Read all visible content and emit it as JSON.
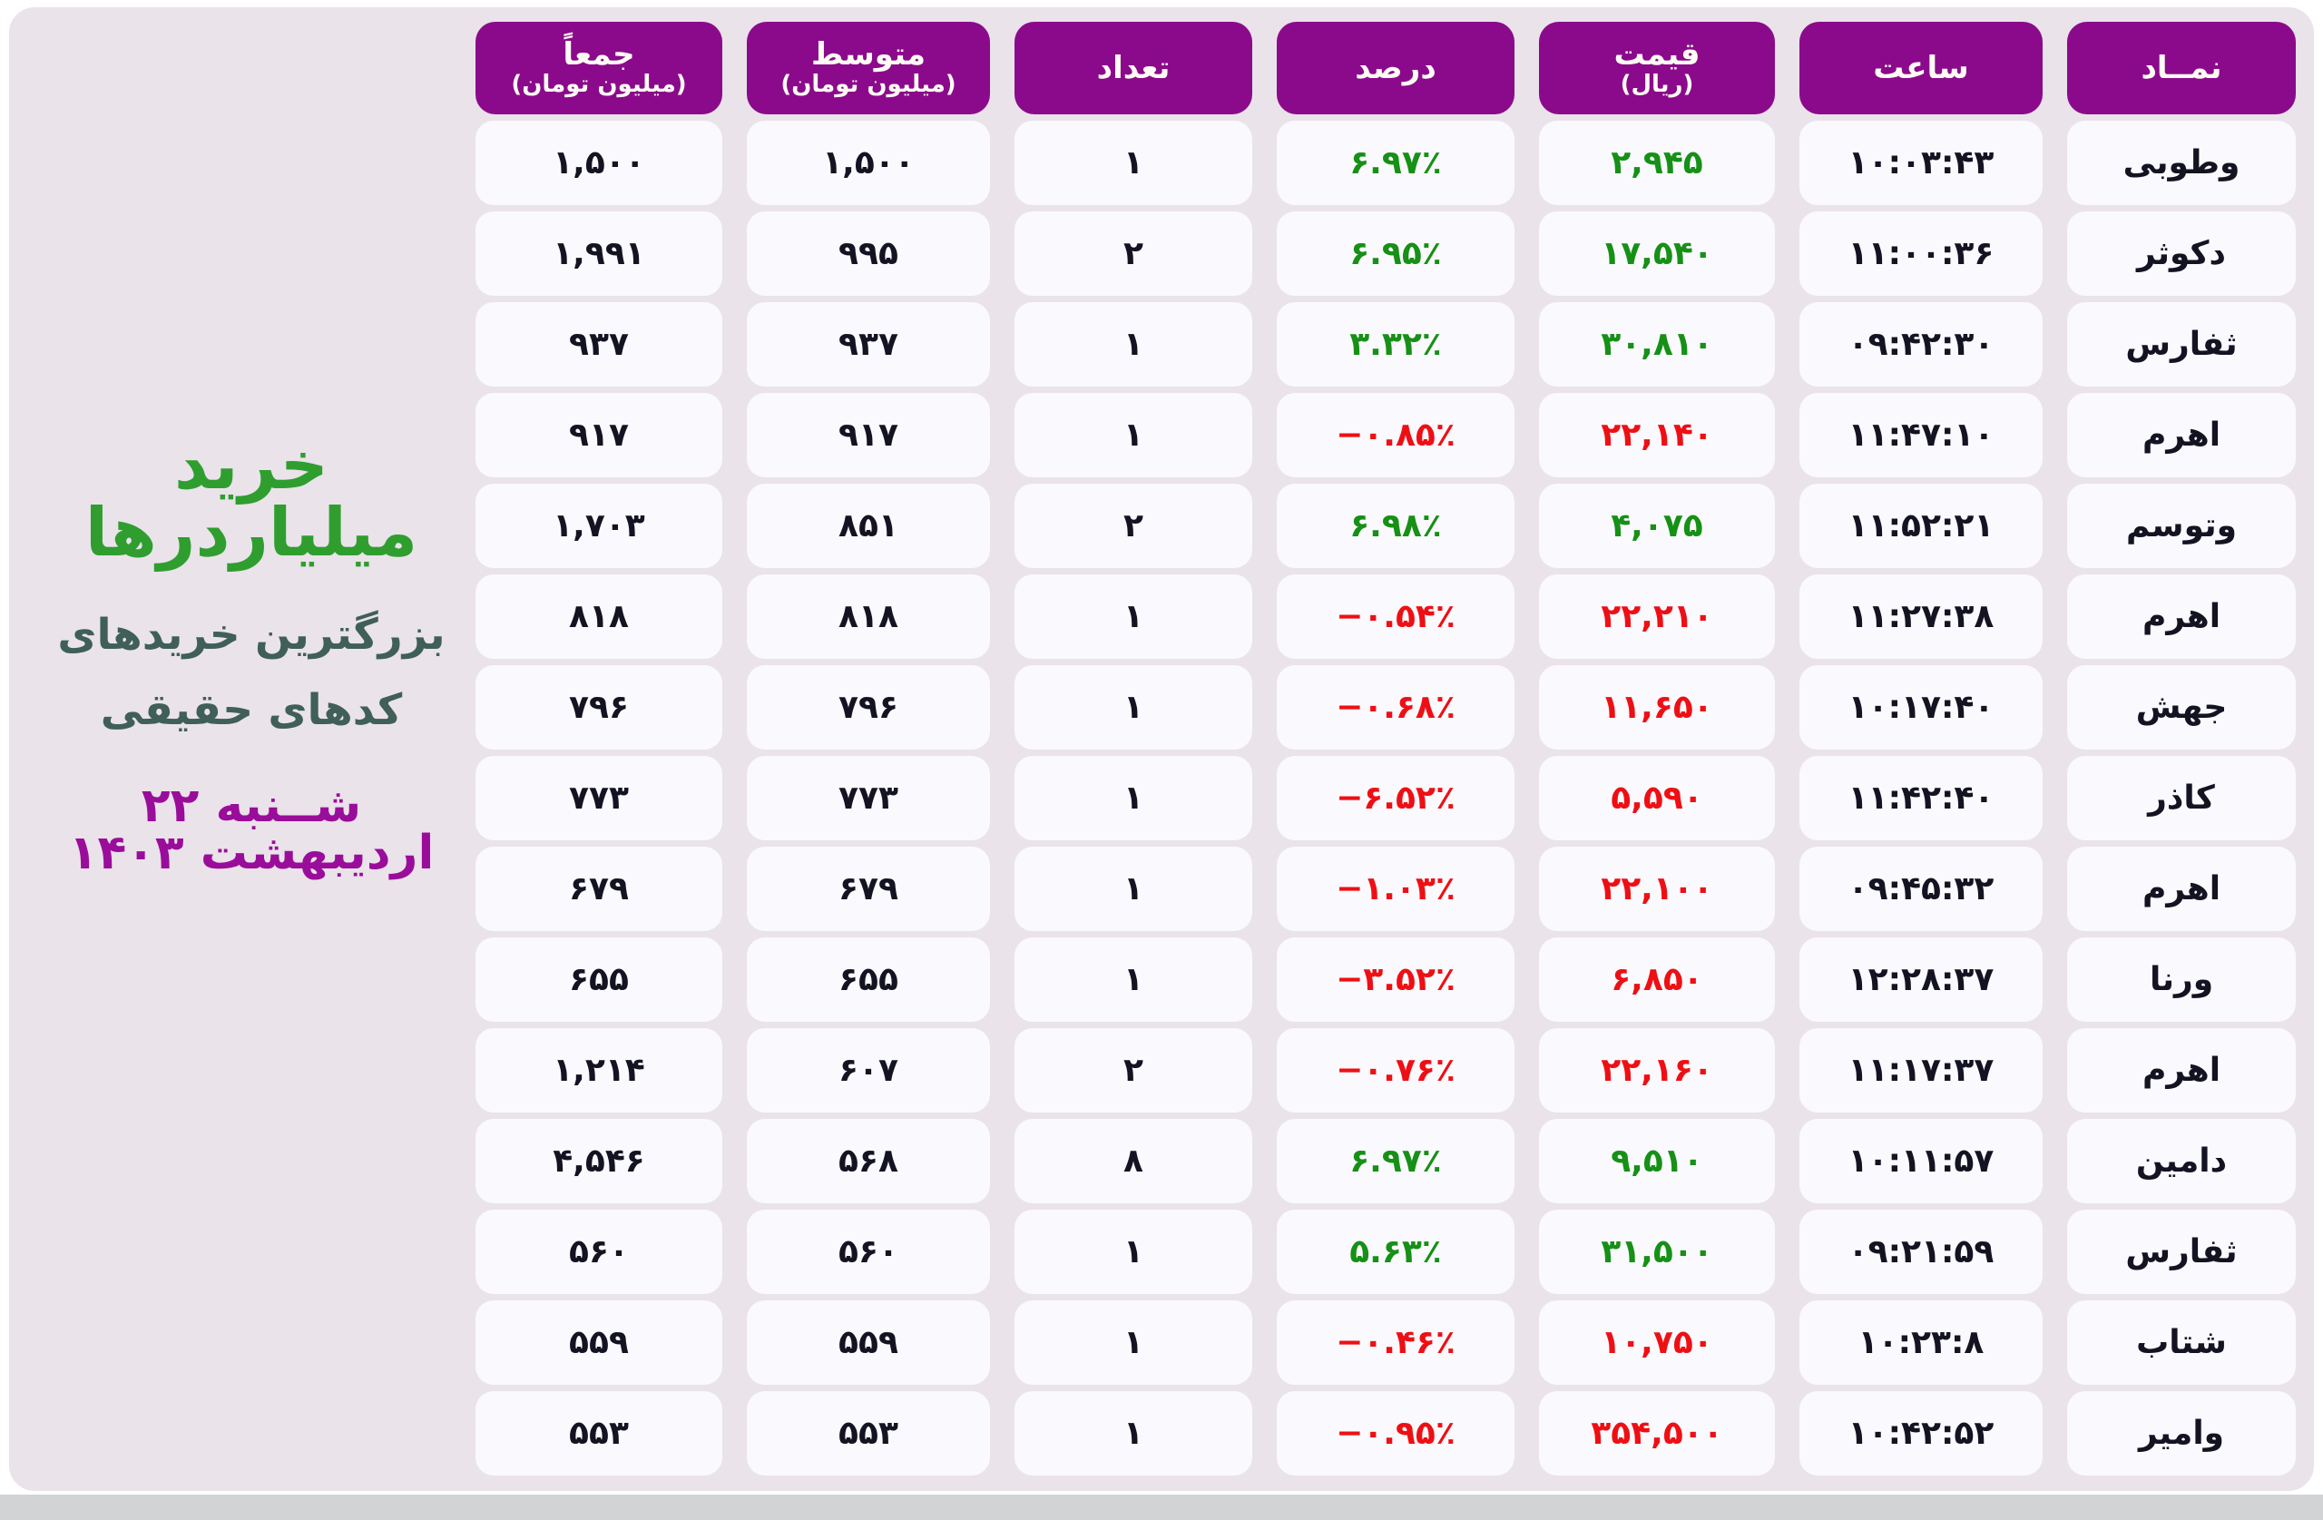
{
  "title": {
    "main": "خرید میلیاردرها",
    "subtitle_line1": "بزرگترین خریدهای",
    "subtitle_line2": "کدهای حقیقی",
    "date": "شــنبه ۲۲ اردیبهشت ۱۴۰۳"
  },
  "colors": {
    "header_purple": "#8b0a8b",
    "positive_green": "#169016",
    "negative_red": "#ee0f14",
    "title_green": "#2f9e2f",
    "subtitle_teal": "#3f5f58",
    "date_purple": "#9a0d9a",
    "panel_background": "#eae3ea",
    "cell_background": "#faf9fd"
  },
  "table": {
    "headers": [
      {
        "label": "نمــاد",
        "sub": ""
      },
      {
        "label": "ساعت",
        "sub": ""
      },
      {
        "label": "قیمت",
        "sub": "(ریال)"
      },
      {
        "label": "درصد",
        "sub": ""
      },
      {
        "label": "تعداد",
        "sub": ""
      },
      {
        "label": "متوسط",
        "sub": "(میلیون تومان)"
      },
      {
        "label": "جمعاً",
        "sub": "(میلیون تومان)"
      }
    ],
    "rows": [
      {
        "symbol": "وطوبی",
        "time": "۱۰:۰۳:۴۳",
        "price": "۲,۹۴۵",
        "percent": "۶.۹۷٪",
        "count": "۱",
        "avg": "۱,۵۰۰",
        "total": "۱,۵۰۰",
        "trend": "up"
      },
      {
        "symbol": "دکوثر",
        "time": "۱۱:۰۰:۳۶",
        "price": "۱۷,۵۴۰",
        "percent": "۶.۹۵٪",
        "count": "۲",
        "avg": "۹۹۵",
        "total": "۱,۹۹۱",
        "trend": "up"
      },
      {
        "symbol": "ثفارس",
        "time": "۰۹:۴۲:۳۰",
        "price": "۳۰,۸۱۰",
        "percent": "۳.۳۲٪",
        "count": "۱",
        "avg": "۹۳۷",
        "total": "۹۳۷",
        "trend": "up"
      },
      {
        "symbol": "اهرم",
        "time": "۱۱:۴۷:۱۰",
        "price": "۲۲,۱۴۰",
        "percent": "−۰.۸۵٪",
        "count": "۱",
        "avg": "۹۱۷",
        "total": "۹۱۷",
        "trend": "down"
      },
      {
        "symbol": "وتوسم",
        "time": "۱۱:۵۲:۲۱",
        "price": "۴,۰۷۵",
        "percent": "۶.۹۸٪",
        "count": "۲",
        "avg": "۸۵۱",
        "total": "۱,۷۰۳",
        "trend": "up"
      },
      {
        "symbol": "اهرم",
        "time": "۱۱:۲۷:۳۸",
        "price": "۲۲,۲۱۰",
        "percent": "−۰.۵۴٪",
        "count": "۱",
        "avg": "۸۱۸",
        "total": "۸۱۸",
        "trend": "down"
      },
      {
        "symbol": "جهش",
        "time": "۱۰:۱۷:۴۰",
        "price": "۱۱,۶۵۰",
        "percent": "−۰.۶۸٪",
        "count": "۱",
        "avg": "۷۹۶",
        "total": "۷۹۶",
        "trend": "down"
      },
      {
        "symbol": "کاذر",
        "time": "۱۱:۴۲:۴۰",
        "price": "۵,۵۹۰",
        "percent": "−۶.۵۲٪",
        "count": "۱",
        "avg": "۷۷۳",
        "total": "۷۷۳",
        "trend": "down"
      },
      {
        "symbol": "اهرم",
        "time": "۰۹:۴۵:۳۲",
        "price": "۲۲,۱۰۰",
        "percent": "−۱.۰۳٪",
        "count": "۱",
        "avg": "۶۷۹",
        "total": "۶۷۹",
        "trend": "down"
      },
      {
        "symbol": "ورنا",
        "time": "۱۲:۲۸:۳۷",
        "price": "۶,۸۵۰",
        "percent": "−۳.۵۲٪",
        "count": "۱",
        "avg": "۶۵۵",
        "total": "۶۵۵",
        "trend": "down"
      },
      {
        "symbol": "اهرم",
        "time": "۱۱:۱۷:۳۷",
        "price": "۲۲,۱۶۰",
        "percent": "−۰.۷۶٪",
        "count": "۲",
        "avg": "۶۰۷",
        "total": "۱,۲۱۴",
        "trend": "down"
      },
      {
        "symbol": "دامین",
        "time": "۱۰:۱۱:۵۷",
        "price": "۹,۵۱۰",
        "percent": "۶.۹۷٪",
        "count": "۸",
        "avg": "۵۶۸",
        "total": "۴,۵۴۶",
        "trend": "up"
      },
      {
        "symbol": "ثفارس",
        "time": "۰۹:۲۱:۵۹",
        "price": "۳۱,۵۰۰",
        "percent": "۵.۶۳٪",
        "count": "۱",
        "avg": "۵۶۰",
        "total": "۵۶۰",
        "trend": "up"
      },
      {
        "symbol": "شتاب",
        "time": "۱۰:۲۳:۸",
        "price": "۱۰,۷۵۰",
        "percent": "−۰.۴۶٪",
        "count": "۱",
        "avg": "۵۵۹",
        "total": "۵۵۹",
        "trend": "down"
      },
      {
        "symbol": "وامیر",
        "time": "۱۰:۴۲:۵۲",
        "price": "۳۵۴,۵۰۰",
        "percent": "−۰.۹۵٪",
        "count": "۱",
        "avg": "۵۵۳",
        "total": "۵۵۳",
        "trend": "down"
      }
    ]
  },
  "chart_data": {
    "type": "table",
    "title": "خرید میلیاردرها",
    "subtitle": "بزرگترین خریدهای کدهای حقیقی",
    "date": "شنبه ۲۲ اردیبهشت ۱۴۰۳",
    "columns": [
      "نماد",
      "ساعت",
      "قیمت (ریال)",
      "درصد",
      "تعداد",
      "متوسط (میلیون تومان)",
      "جمعاً (میلیون تومان)"
    ],
    "rows_numeric": [
      [
        "وطوبی",
        "10:03:43",
        2945,
        6.97,
        1,
        1500,
        1500
      ],
      [
        "دکوثر",
        "11:00:36",
        17540,
        6.95,
        2,
        995,
        1991
      ],
      [
        "ثفارس",
        "09:42:30",
        30810,
        3.32,
        1,
        937,
        937
      ],
      [
        "اهرم",
        "11:47:10",
        22140,
        -0.85,
        1,
        917,
        917
      ],
      [
        "وتوسم",
        "11:52:21",
        4075,
        6.98,
        2,
        851,
        1703
      ],
      [
        "اهرم",
        "11:27:38",
        22210,
        -0.54,
        1,
        818,
        818
      ],
      [
        "جهش",
        "10:17:40",
        11650,
        -0.68,
        1,
        796,
        796
      ],
      [
        "کاذر",
        "11:42:40",
        5590,
        -6.52,
        1,
        773,
        773
      ],
      [
        "اهرم",
        "09:45:32",
        22100,
        -1.03,
        1,
        679,
        679
      ],
      [
        "ورنا",
        "12:28:37",
        6850,
        -3.52,
        1,
        655,
        655
      ],
      [
        "اهرم",
        "11:17:37",
        22160,
        -0.76,
        2,
        607,
        1214
      ],
      [
        "دامین",
        "10:11:57",
        9510,
        6.97,
        8,
        568,
        4546
      ],
      [
        "ثفارس",
        "09:21:59",
        31500,
        5.63,
        1,
        560,
        560
      ],
      [
        "شتاب",
        "10:23:08",
        10750,
        -0.46,
        1,
        559,
        559
      ],
      [
        "وامیر",
        "10:42:52",
        354500,
        -0.95,
        1,
        553,
        553
      ]
    ]
  }
}
